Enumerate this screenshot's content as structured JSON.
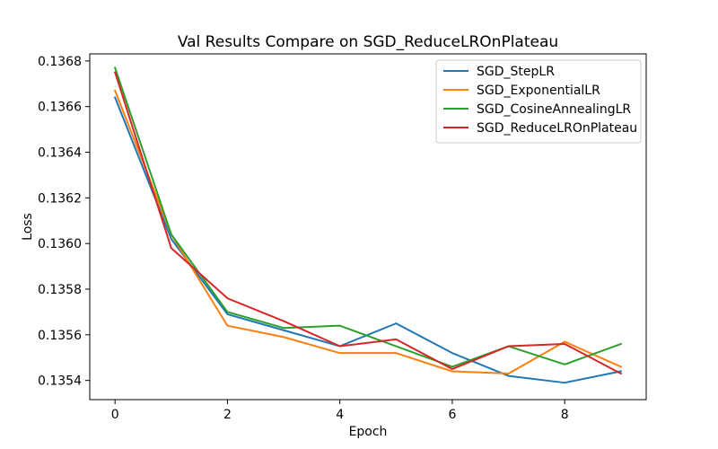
{
  "chart_data": {
    "type": "line",
    "title": "Val Results Compare on SGD_ReduceLROnPlateau",
    "xlabel": "Epoch",
    "ylabel": "Loss",
    "xlim": [
      -0.45,
      9.45
    ],
    "ylim": [
      0.135316,
      0.136831
    ],
    "x_ticks": [
      0,
      2,
      4,
      6,
      8
    ],
    "x_tick_labels": [
      "0",
      "2",
      "4",
      "6",
      "8"
    ],
    "y_ticks": [
      0.1354,
      0.1356,
      0.1358,
      0.136,
      0.1362,
      0.1364,
      0.1366,
      0.1368
    ],
    "y_tick_labels": [
      "0.1354",
      "0.1356",
      "0.1358",
      "0.1360",
      "0.1362",
      "0.1364",
      "0.1366",
      "0.1368"
    ],
    "grid": false,
    "legend_position": "top-right",
    "x": [
      0,
      1,
      2,
      3,
      4,
      5,
      6,
      7,
      8,
      9
    ],
    "series": [
      {
        "name": "SGD_StepLR",
        "color": "#1f77b4",
        "values": [
          0.13664,
          0.13602,
          0.13569,
          0.13562,
          0.13555,
          0.13565,
          0.13552,
          0.13542,
          0.13539,
          0.13544
        ]
      },
      {
        "name": "SGD_ExponentialLR",
        "color": "#ff7f0e",
        "values": [
          0.13667,
          0.13604,
          0.13564,
          0.13559,
          0.13552,
          0.13552,
          0.13544,
          0.13543,
          0.13557,
          0.13546
        ]
      },
      {
        "name": "SGD_CosineAnnealingLR",
        "color": "#2ca02c",
        "values": [
          0.13677,
          0.13604,
          0.1357,
          0.13563,
          0.13564,
          0.13555,
          0.13546,
          0.13555,
          0.13547,
          0.13556
        ]
      },
      {
        "name": "SGD_ReduceLROnPlateau",
        "color": "#d62728",
        "values": [
          0.13675,
          0.13598,
          0.13576,
          0.13566,
          0.13555,
          0.13558,
          0.13545,
          0.13555,
          0.13556,
          0.13543
        ]
      }
    ]
  }
}
